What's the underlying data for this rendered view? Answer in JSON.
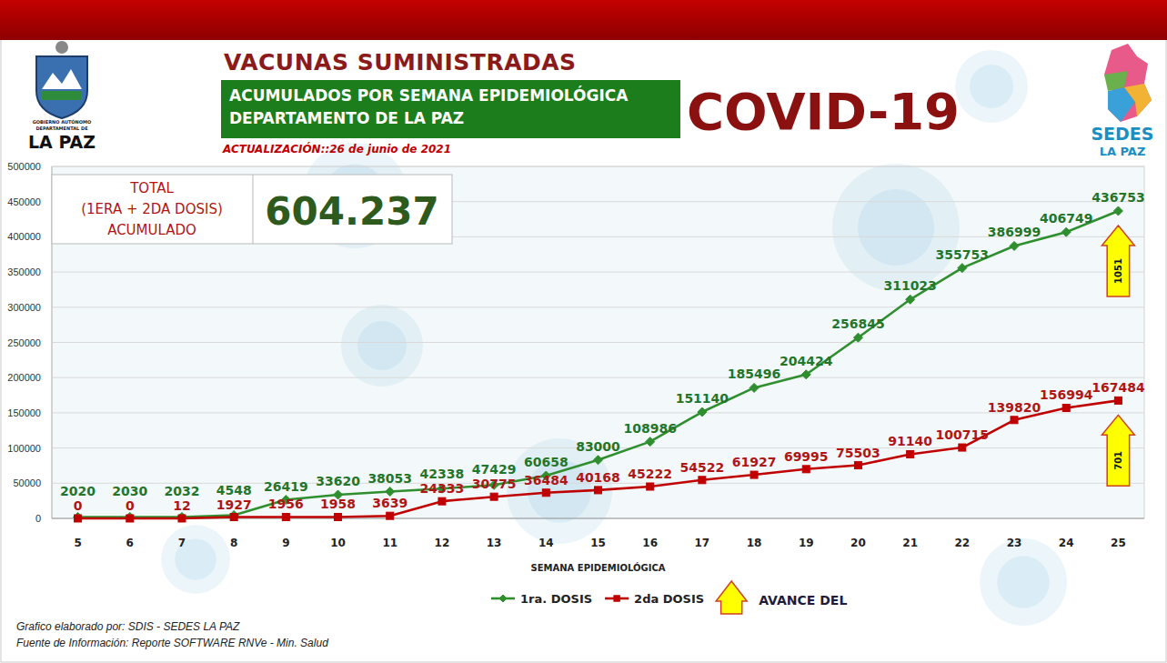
{
  "chart_data": {
    "type": "line",
    "title": "VACUNAS SUMINISTRADAS",
    "subtitle": [
      "ACUMULADOS POR SEMANA EPIDEMIOLÓGICA",
      "DEPARTAMENTO DE LA PAZ"
    ],
    "x_label": "SEMANA EPIDEMIOLÓGICA",
    "categories": [
      "5",
      "6",
      "7",
      "8",
      "9",
      "10",
      "11",
      "12",
      "13",
      "14",
      "15",
      "16",
      "17",
      "18",
      "19",
      "20",
      "21",
      "22",
      "23",
      "24",
      "25"
    ],
    "series": [
      {
        "name": "1ra. DOSIS",
        "color": "#2f8f2f",
        "marker": "diamond",
        "values": [
          2020,
          2030,
          2032,
          4548,
          26419,
          33620,
          38053,
          42338,
          47429,
          60658,
          83000,
          108986,
          151140,
          185496,
          204424,
          256845,
          311023,
          355753,
          386999,
          406749,
          436753
        ]
      },
      {
        "name": "2da DOSIS",
        "color": "#c00000",
        "marker": "square",
        "values": [
          0,
          0,
          12,
          1927,
          1956,
          1958,
          3639,
          24333,
          30775,
          36484,
          40168,
          45222,
          54522,
          61927,
          69995,
          75503,
          91140,
          100715,
          139820,
          156994,
          167484
        ]
      }
    ],
    "ylim": [
      0,
      500000
    ],
    "yticks": [
      0,
      50000,
      100000,
      150000,
      200000,
      250000,
      300000,
      350000,
      400000,
      450000,
      500000
    ],
    "grid": true,
    "data_labels": true,
    "legend": "bottom",
    "annotations": [
      "1051",
      "701"
    ],
    "legend_note": "AVANCE DEL"
  },
  "heading": "COVID-19",
  "update": "ACTUALIZACIÓN::26 de junio de 2021",
  "total_box": {
    "label": [
      "TOTAL",
      "(1ERA + 2DA DOSIS)",
      "ACUMULADO"
    ],
    "value": "604.237"
  },
  "logos": {
    "left": [
      "GOBIERNO AUTÓNOMO",
      "DEPARTAMENTAL DE",
      "LA PAZ"
    ],
    "right": [
      "SEDES",
      "LA PAZ"
    ]
  },
  "footer": [
    "Grafico elaborado por: SDIS - SEDES LA PAZ",
    "Fuente de Información: Reporte SOFTWARE RNVe - Min. Salud"
  ]
}
